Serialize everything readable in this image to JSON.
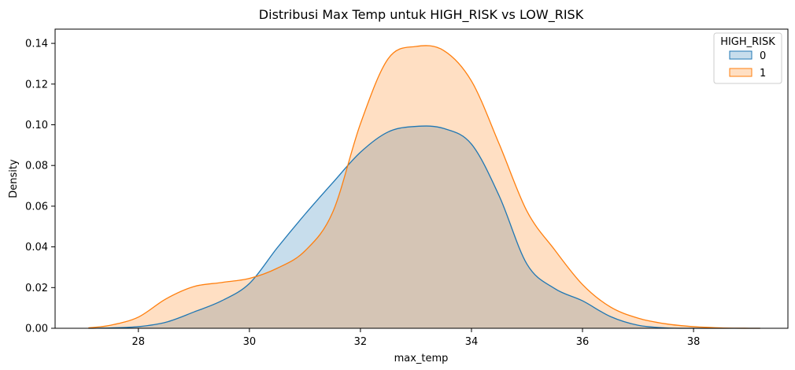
{
  "chart_data": {
    "type": "area",
    "title": "Distribusi Max Temp untuk HIGH_RISK vs LOW_RISK",
    "xlabel": "max_temp",
    "ylabel": "Density",
    "xlim": [
      26.5,
      39.7
    ],
    "ylim": [
      0,
      0.147
    ],
    "x_ticks": [
      28,
      30,
      32,
      34,
      36,
      38
    ],
    "y_ticks": [
      0.0,
      0.02,
      0.04,
      0.06,
      0.08,
      0.1,
      0.12,
      0.14
    ],
    "grid": false,
    "legend": {
      "title": "HIGH_RISK",
      "placement": "top-right"
    },
    "series": [
      {
        "name": "0",
        "color": "#1f77b4",
        "fill": "#1f77b4",
        "fill_opacity": 0.25,
        "x": [
          27.1,
          27.5,
          28.0,
          28.5,
          29.0,
          29.5,
          30.0,
          30.5,
          31.0,
          31.5,
          32.0,
          32.5,
          33.0,
          33.5,
          34.0,
          34.5,
          35.0,
          35.5,
          36.0,
          36.5,
          37.0,
          37.5,
          38.0,
          38.5,
          39.0,
          39.2
        ],
        "y": [
          0.0,
          0.0002,
          0.0008,
          0.003,
          0.008,
          0.0135,
          0.022,
          0.0395,
          0.056,
          0.0715,
          0.0865,
          0.0965,
          0.0992,
          0.0982,
          0.0905,
          0.065,
          0.0315,
          0.0195,
          0.0135,
          0.0058,
          0.0015,
          0.0002,
          0.0,
          0.0,
          0.0,
          0.0
        ]
      },
      {
        "name": "1",
        "color": "#ff7f0e",
        "fill": "#ff7f0e",
        "fill_opacity": 0.25,
        "x": [
          27.1,
          27.5,
          28.0,
          28.5,
          29.0,
          29.5,
          30.0,
          30.5,
          31.0,
          31.5,
          32.0,
          32.5,
          33.0,
          33.5,
          34.0,
          34.5,
          35.0,
          35.5,
          36.0,
          36.5,
          37.0,
          37.5,
          38.0,
          38.5,
          39.0,
          39.2
        ],
        "y": [
          0.0002,
          0.0015,
          0.0055,
          0.0145,
          0.0205,
          0.0225,
          0.0245,
          0.0295,
          0.038,
          0.057,
          0.1005,
          0.1325,
          0.1385,
          0.1365,
          0.1215,
          0.0905,
          0.0575,
          0.0385,
          0.0215,
          0.0105,
          0.005,
          0.0022,
          0.0008,
          0.0002,
          0.0,
          0.0
        ]
      }
    ]
  }
}
